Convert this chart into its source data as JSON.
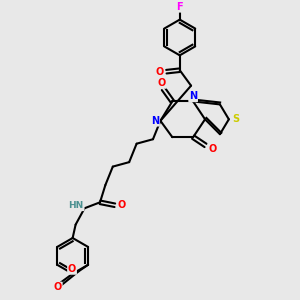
{
  "bg_color": "#e8e8e8",
  "atom_colors": {
    "O": "#ff0000",
    "N": "#0000ff",
    "S": "#cccc00",
    "F": "#ff00ff",
    "C": "#000000",
    "H": "#4a9090"
  },
  "bond_color": "#000000",
  "bond_width": 1.5,
  "figsize": [
    3.0,
    3.0
  ],
  "dpi": 100
}
